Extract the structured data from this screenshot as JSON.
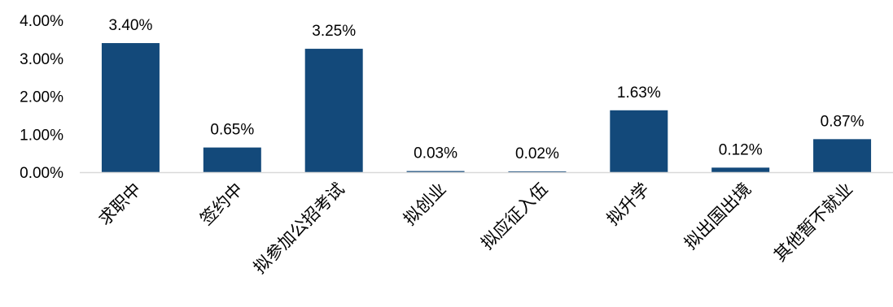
{
  "chart_data": {
    "type": "bar",
    "categories": [
      "求职中",
      "签约中",
      "拟参加公招考试",
      "拟创业",
      "拟应征入伍",
      "拟升学",
      "拟出国出境",
      "其他暂不就业"
    ],
    "values": [
      3.4,
      0.65,
      3.25,
      0.03,
      0.02,
      1.63,
      0.12,
      0.87
    ],
    "data_labels": [
      "3.40%",
      "0.65%",
      "3.25%",
      "0.03%",
      "0.02%",
      "1.63%",
      "0.12%",
      "0.87%"
    ],
    "y_ticks": [
      0,
      1,
      2,
      3,
      4
    ],
    "y_tick_labels": [
      "0.00%",
      "1.00%",
      "2.00%",
      "3.00%",
      "4.00%"
    ],
    "ylim": [
      0,
      4
    ],
    "grid": false,
    "legend": "none",
    "bar_color": "#13497A",
    "axis_color": "#D9D9D9"
  }
}
